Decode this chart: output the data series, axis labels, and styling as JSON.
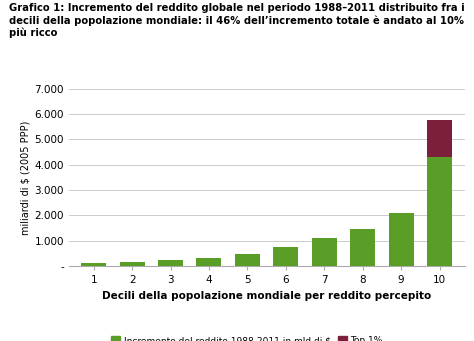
{
  "title_line1": "Grafico 1: Incremento del reddito globale nel periodo 1988–2011 distribuito fra i",
  "title_line2": "decili della popolazione mondiale: il 46% dell’incremento totale è andato al 10%",
  "title_line3": "più ricco",
  "categories": [
    1,
    2,
    3,
    4,
    5,
    6,
    7,
    8,
    9,
    10
  ],
  "green_values": [
    120,
    165,
    240,
    330,
    480,
    760,
    1120,
    1470,
    2100,
    4300
  ],
  "top1_values": [
    0,
    0,
    0,
    0,
    0,
    0,
    0,
    0,
    0,
    1480
  ],
  "green_color": "#5a9e28",
  "top1_color": "#7b1f3a",
  "ylabel": "miliardi di $ (2005 PPP)",
  "xlabel": "Decili della popolazione mondiale per reddito percepito",
  "ylim": [
    0,
    7000
  ],
  "yticks": [
    0,
    1000,
    2000,
    3000,
    4000,
    5000,
    6000,
    7000
  ],
  "ytick_labels": [
    "-",
    "1.000",
    "2.000",
    "3.000",
    "4.000",
    "5.000",
    "6.000",
    "7.000"
  ],
  "legend_green": "Incremento del reddito 1988-2011 in mld di $",
  "legend_top1": "Top 1%",
  "background_color": "#ffffff",
  "grid_color": "#cccccc"
}
